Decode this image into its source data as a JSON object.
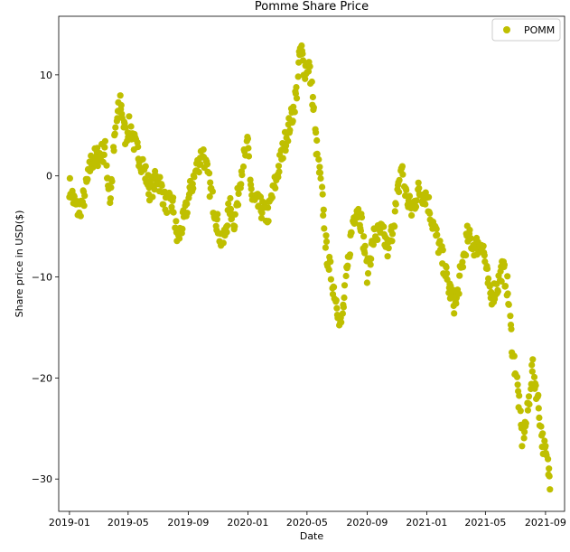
{
  "chart_data": {
    "type": "scatter",
    "title": "Pomme Share Price",
    "xlabel": "Date",
    "ylabel": "Share price in USD($)",
    "xlim": [
      "2018-12-10",
      "2021-10-10"
    ],
    "ylim": [
      -33.2,
      15.8
    ],
    "x_ticks": [
      "2019-01-01",
      "2019-05-01",
      "2019-09-01",
      "2020-01-01",
      "2020-05-01",
      "2020-09-01",
      "2021-01-01",
      "2021-05-01",
      "2021-09-01"
    ],
    "x_tick_labels": [
      "2019-01",
      "2019-05",
      "2019-09",
      "2020-01",
      "2020-05",
      "2020-09",
      "2021-01",
      "2021-05",
      "2021-09"
    ],
    "y_ticks": [
      10,
      0,
      -10,
      -20,
      -30
    ],
    "y_tick_labels": [
      "10",
      "0",
      "−10",
      "−20",
      "−30"
    ],
    "grid": false,
    "legend_position": "top-right",
    "series": [
      {
        "name": "POMM",
        "color": "#bfbf00",
        "anchors": [
          [
            "2019-01-01",
            -1.0
          ],
          [
            "2019-01-10",
            -2.5
          ],
          [
            "2019-01-20",
            -3.5
          ],
          [
            "2019-02-01",
            -2.0
          ],
          [
            "2019-02-15",
            1.5
          ],
          [
            "2019-03-01",
            2.0
          ],
          [
            "2019-03-15",
            2.5
          ],
          [
            "2019-03-25",
            -2.5
          ],
          [
            "2019-04-05",
            4.5
          ],
          [
            "2019-04-15",
            7.5
          ],
          [
            "2019-04-25",
            4.0
          ],
          [
            "2019-05-05",
            5.0
          ],
          [
            "2019-05-15",
            3.0
          ],
          [
            "2019-06-01",
            1.0
          ],
          [
            "2019-06-15",
            -1.5
          ],
          [
            "2019-07-01",
            0.0
          ],
          [
            "2019-07-15",
            -2.5
          ],
          [
            "2019-08-01",
            -3.0
          ],
          [
            "2019-08-10",
            -6.5
          ],
          [
            "2019-08-25",
            -4.0
          ],
          [
            "2019-09-05",
            -1.5
          ],
          [
            "2019-09-20",
            1.0
          ],
          [
            "2019-10-01",
            2.5
          ],
          [
            "2019-10-15",
            -1.0
          ],
          [
            "2019-11-01",
            -5.0
          ],
          [
            "2019-11-10",
            -7.0
          ],
          [
            "2019-11-25",
            -3.0
          ],
          [
            "2019-12-05",
            -4.5
          ],
          [
            "2019-12-20",
            1.0
          ],
          [
            "2020-01-01",
            3.0
          ],
          [
            "2020-01-10",
            -2.5
          ],
          [
            "2020-01-25",
            -3.0
          ],
          [
            "2020-02-10",
            -4.0
          ],
          [
            "2020-02-20",
            -2.0
          ],
          [
            "2020-03-05",
            1.0
          ],
          [
            "2020-03-20",
            4.0
          ],
          [
            "2020-04-01",
            6.0
          ],
          [
            "2020-04-10",
            8.5
          ],
          [
            "2020-04-18",
            13.0
          ],
          [
            "2020-04-25",
            10.5
          ],
          [
            "2020-05-05",
            11.0
          ],
          [
            "2020-05-12",
            8.0
          ],
          [
            "2020-05-20",
            3.0
          ],
          [
            "2020-06-01",
            -2.0
          ],
          [
            "2020-06-10",
            -7.5
          ],
          [
            "2020-06-20",
            -10.0
          ],
          [
            "2020-07-01",
            -12.5
          ],
          [
            "2020-07-10",
            -15.0
          ],
          [
            "2020-07-20",
            -10.5
          ],
          [
            "2020-08-01",
            -5.0
          ],
          [
            "2020-08-10",
            -3.0
          ],
          [
            "2020-08-20",
            -4.5
          ],
          [
            "2020-09-01",
            -9.5
          ],
          [
            "2020-09-15",
            -6.0
          ],
          [
            "2020-10-01",
            -5.5
          ],
          [
            "2020-10-15",
            -7.5
          ],
          [
            "2020-11-01",
            -2.5
          ],
          [
            "2020-11-10",
            1.0
          ],
          [
            "2020-11-20",
            -2.0
          ],
          [
            "2020-12-01",
            -3.5
          ],
          [
            "2020-12-15",
            -1.5
          ],
          [
            "2021-01-01",
            -2.0
          ],
          [
            "2021-01-15",
            -5.0
          ],
          [
            "2021-02-01",
            -8.0
          ],
          [
            "2021-02-15",
            -11.0
          ],
          [
            "2021-03-01",
            -13.0
          ],
          [
            "2021-03-10",
            -10.0
          ],
          [
            "2021-03-25",
            -6.0
          ],
          [
            "2021-04-10",
            -7.0
          ],
          [
            "2021-04-25",
            -6.5
          ],
          [
            "2021-05-10",
            -12.0
          ],
          [
            "2021-05-25",
            -11.0
          ],
          [
            "2021-06-05",
            -9.0
          ],
          [
            "2021-06-15",
            -11.0
          ],
          [
            "2021-06-25",
            -17.0
          ],
          [
            "2021-07-05",
            -20.5
          ],
          [
            "2021-07-15",
            -26.0
          ],
          [
            "2021-07-25",
            -24.0
          ],
          [
            "2021-08-05",
            -19.0
          ],
          [
            "2021-08-15",
            -21.5
          ],
          [
            "2021-08-25",
            -26.0
          ],
          [
            "2021-09-05",
            -28.5
          ],
          [
            "2021-09-12",
            -30.5
          ]
        ]
      }
    ]
  }
}
